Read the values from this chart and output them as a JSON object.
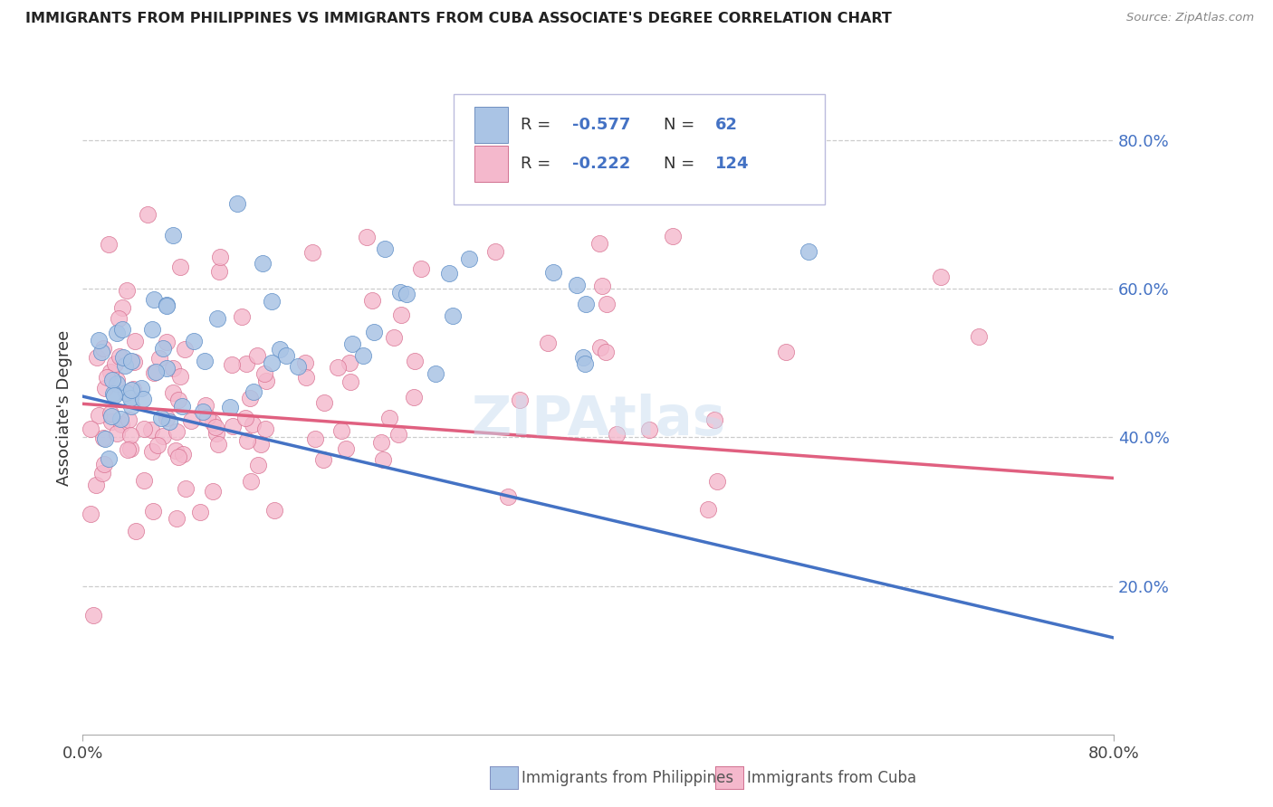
{
  "title": "IMMIGRANTS FROM PHILIPPINES VS IMMIGRANTS FROM CUBA ASSOCIATE'S DEGREE CORRELATION CHART",
  "source": "Source: ZipAtlas.com",
  "ylabel": "Associate's Degree",
  "xlim": [
    0.0,
    0.8
  ],
  "ylim": [
    0.0,
    0.88
  ],
  "blue_color": "#aac4e5",
  "pink_color": "#f4b8cc",
  "line_blue_color": "#4472C4",
  "line_pink_color": "#E06080",
  "text_blue_color": "#4472C4",
  "legend_label_blue": "Immigrants from Philippines",
  "legend_label_pink": "Immigrants from Cuba",
  "legend_blue_r": "-0.577",
  "legend_blue_n": "62",
  "legend_pink_r": "-0.222",
  "legend_pink_n": "124",
  "right_ytick_vals": [
    0.2,
    0.4,
    0.6,
    0.8
  ],
  "right_ytick_labels": [
    "20.0%",
    "40.0%",
    "60.0%",
    "80.0%"
  ],
  "xtick_vals": [
    0.0,
    0.8
  ],
  "xtick_labels": [
    "0.0%",
    "80.0%"
  ],
  "grid_color": "#cccccc",
  "watermark_color": "#c8ddf0",
  "blue_line_start_y": 0.455,
  "blue_line_end_y": 0.13,
  "pink_line_start_y": 0.445,
  "pink_line_end_y": 0.345
}
